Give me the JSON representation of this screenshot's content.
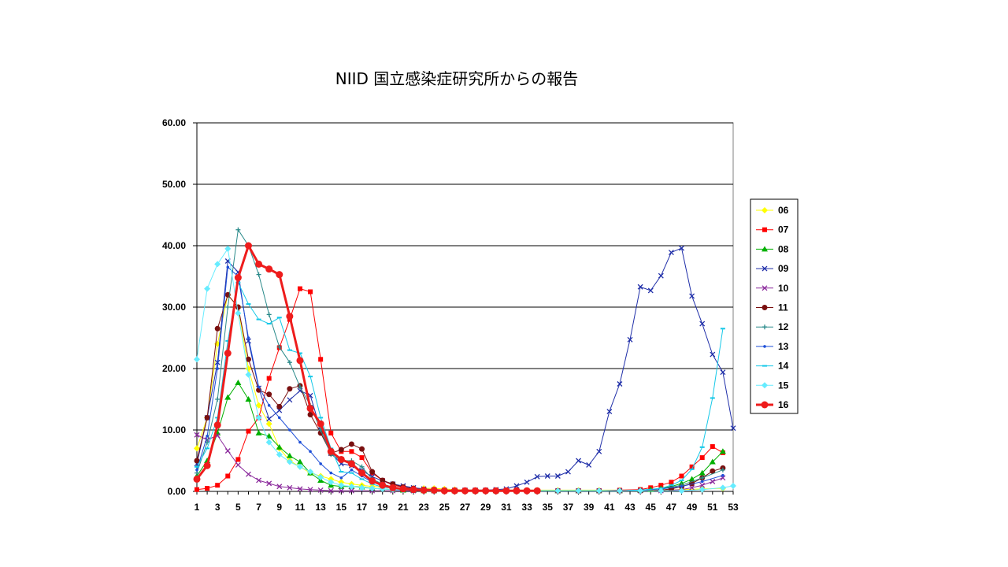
{
  "title": "NIID  国立感染症研究所からの報告",
  "chart_data": {
    "type": "line",
    "ylim": [
      0,
      60
    ],
    "yticks": [
      "0.00",
      "10.00",
      "20.00",
      "30.00",
      "40.00",
      "50.00",
      "60.00"
    ],
    "xticks": [
      "1",
      "3",
      "5",
      "7",
      "9",
      "11",
      "13",
      "15",
      "17",
      "19",
      "21",
      "23",
      "25",
      "27",
      "29",
      "31",
      "33",
      "35",
      "37",
      "39",
      "41",
      "43",
      "45",
      "47",
      "49",
      "51",
      "53"
    ],
    "xlim": [
      1,
      53
    ],
    "grid": true,
    "legend_position": "right",
    "series": [
      {
        "name": "06",
        "color": "#ffff00",
        "marker": "diamond",
        "width": 1,
        "x": [
          1,
          2,
          3,
          4,
          5,
          6,
          7,
          8,
          9,
          10,
          11,
          12,
          13,
          14,
          15,
          16,
          17,
          18,
          19,
          20,
          21,
          22,
          23,
          24,
          25,
          26,
          28,
          30,
          32,
          34,
          36,
          38,
          40,
          42,
          44,
          46,
          48,
          50,
          52
        ],
        "y": [
          7,
          12,
          24,
          32,
          30,
          20,
          14,
          11,
          7,
          5,
          4,
          3,
          2.5,
          2,
          1.5,
          1.2,
          1,
          0.8,
          0.7,
          0.6,
          0.5,
          0.5,
          0.5,
          0.5,
          0.4,
          0.3,
          0.2,
          0.2,
          0.2,
          0.2,
          0.2,
          0.2,
          0.2,
          0.2,
          0.2,
          0.2,
          0.3,
          0.4,
          0.5
        ]
      },
      {
        "name": "07",
        "color": "#ff0000",
        "marker": "square",
        "width": 1,
        "x": [
          1,
          2,
          3,
          4,
          5,
          6,
          7,
          8,
          9,
          10,
          11,
          12,
          13,
          14,
          15,
          16,
          17,
          18,
          19,
          20,
          21,
          22,
          23,
          24,
          25,
          26,
          28,
          30,
          32,
          34,
          36,
          38,
          40,
          42,
          44,
          45,
          46,
          47,
          48,
          49,
          50,
          51,
          52
        ],
        "y": [
          0.3,
          0.5,
          1,
          2.5,
          5.2,
          9.8,
          12,
          18.4,
          23.4,
          28,
          33,
          32.5,
          21.5,
          9.5,
          6.5,
          6.5,
          5.5,
          3,
          1.8,
          1,
          0.7,
          0.4,
          0.3,
          0.2,
          0.2,
          0.1,
          0.1,
          0.1,
          0.1,
          0.1,
          0.1,
          0.1,
          0.1,
          0.2,
          0.3,
          0.6,
          1,
          1.5,
          2.5,
          4,
          5.5,
          7.3,
          6.3
        ]
      },
      {
        "name": "08",
        "color": "#00b000",
        "marker": "triangle",
        "width": 1,
        "x": [
          1,
          2,
          3,
          4,
          5,
          6,
          7,
          8,
          9,
          10,
          11,
          12,
          13,
          14,
          15,
          16,
          17,
          18,
          19,
          20,
          21,
          22,
          23,
          24,
          26,
          28,
          30,
          32,
          34,
          36,
          38,
          40,
          42,
          44,
          45,
          46,
          47,
          48,
          49,
          50,
          51,
          52
        ],
        "y": [
          2.5,
          5,
          9.5,
          15.3,
          17.7,
          15,
          9.5,
          9,
          7.2,
          5.8,
          4.8,
          3,
          1.8,
          1,
          0.8,
          0.8,
          0.7,
          0.5,
          0.4,
          0.3,
          0.2,
          0.2,
          0.1,
          0.1,
          0.1,
          0.1,
          0.1,
          0.1,
          0.1,
          0.1,
          0.1,
          0.1,
          0.1,
          0.2,
          0.3,
          0.5,
          0.8,
          1.3,
          2,
          3,
          4.8,
          6.5
        ]
      },
      {
        "name": "09",
        "color": "#1f2ea8",
        "marker": "x",
        "width": 1,
        "x": [
          1,
          2,
          3,
          4,
          5,
          6,
          7,
          8,
          9,
          10,
          11,
          12,
          13,
          14,
          15,
          16,
          17,
          18,
          19,
          20,
          21,
          22,
          23,
          24,
          25,
          26,
          27,
          28,
          29,
          30,
          31,
          32,
          33,
          34,
          35,
          36,
          37,
          38,
          39,
          40,
          41,
          42,
          43,
          44,
          45,
          46,
          47,
          48,
          49,
          50,
          51,
          52,
          53
        ],
        "y": [
          4.5,
          12,
          21,
          37.5,
          35.7,
          24.5,
          16.8,
          11.8,
          13.2,
          14.9,
          16.4,
          15.6,
          10,
          6.2,
          4.5,
          4.2,
          3.4,
          2.4,
          1.7,
          1.2,
          0.9,
          0.6,
          0.4,
          0.3,
          0.2,
          0.2,
          0.2,
          0.2,
          0.2,
          0.3,
          0.4,
          0.9,
          1.5,
          2.4,
          2.5,
          2.5,
          3.2,
          5,
          4.3,
          6.5,
          13,
          17.5,
          24.7,
          33.3,
          32.7,
          35.1,
          38.9,
          39.6,
          31.8,
          27.3,
          22.3,
          19.4,
          10.3
        ]
      },
      {
        "name": "10",
        "color": "#8b2a9c",
        "marker": "x",
        "width": 1,
        "x": [
          1,
          2,
          3,
          4,
          5,
          6,
          7,
          8,
          9,
          10,
          11,
          12,
          13,
          14,
          15,
          16,
          18,
          20,
          22,
          24,
          26,
          28,
          30,
          32,
          34,
          36,
          38,
          40,
          42,
          44,
          46,
          48,
          49,
          50,
          51,
          52
        ],
        "y": [
          9.2,
          8.4,
          9.1,
          6.6,
          4.3,
          2.8,
          1.8,
          1.3,
          0.8,
          0.6,
          0.4,
          0.3,
          0.2,
          0.1,
          0.1,
          0.1,
          0.1,
          0.1,
          0.1,
          0.1,
          0.1,
          0.1,
          0.1,
          0.1,
          0.1,
          0.1,
          0.1,
          0.1,
          0.1,
          0.1,
          0.1,
          0.3,
          0.6,
          1,
          1.6,
          2.2
        ]
      },
      {
        "name": "11",
        "color": "#7a1010",
        "marker": "circle",
        "width": 1,
        "x": [
          1,
          2,
          3,
          4,
          5,
          6,
          7,
          8,
          9,
          10,
          11,
          12,
          13,
          14,
          15,
          16,
          17,
          18,
          19,
          20,
          21,
          22,
          23,
          24,
          26,
          28,
          30,
          32,
          34,
          36,
          38,
          40,
          42,
          44,
          46,
          47,
          48,
          49,
          50,
          51,
          52
        ],
        "y": [
          5,
          12,
          26.5,
          32,
          30,
          21.5,
          16.5,
          15.8,
          13.8,
          16.7,
          17.2,
          12.5,
          9.5,
          6.2,
          6.8,
          7.7,
          6.9,
          3.2,
          1.8,
          1.2,
          0.7,
          0.5,
          0.3,
          0.2,
          0.1,
          0.1,
          0.1,
          0.1,
          0.1,
          0.1,
          0.1,
          0.1,
          0.1,
          0.1,
          0.2,
          0.4,
          0.8,
          1.3,
          2.2,
          3.3,
          3.8
        ]
      },
      {
        "name": "12",
        "color": "#2a8a8a",
        "marker": "plus",
        "width": 1,
        "x": [
          1,
          2,
          3,
          4,
          5,
          6,
          7,
          8,
          9,
          10,
          11,
          12,
          13,
          14,
          15,
          16,
          17,
          18,
          19,
          20,
          21,
          22,
          23,
          24,
          26,
          28,
          30,
          32,
          34,
          36,
          38,
          40,
          42,
          44,
          46,
          48,
          50,
          52
        ],
        "y": [
          3,
          8,
          15,
          30,
          42.6,
          40,
          35.3,
          28.8,
          23.5,
          21,
          17,
          14,
          10,
          6,
          5,
          5,
          4,
          2,
          1.2,
          0.7,
          0.4,
          0.3,
          0.2,
          0.1,
          0.1,
          0.1,
          0.1,
          0.1,
          0.1,
          0.1,
          0.1,
          0.1,
          0.1,
          0.2,
          0.4,
          1,
          2.2,
          3.5
        ]
      },
      {
        "name": "13",
        "color": "#1e4fd8",
        "marker": "dot",
        "width": 1,
        "x": [
          1,
          2,
          3,
          4,
          5,
          6,
          7,
          8,
          9,
          10,
          11,
          12,
          13,
          14,
          15,
          16,
          17,
          18,
          19,
          20,
          21,
          22,
          23,
          24,
          26,
          28,
          30,
          32,
          34,
          36,
          38,
          40,
          42,
          44,
          46,
          48,
          50,
          52
        ],
        "y": [
          3.5,
          9,
          20,
          36.5,
          35,
          25,
          17,
          14,
          12,
          10,
          8,
          6.5,
          4.5,
          3,
          2.2,
          3.5,
          2.5,
          1.5,
          1,
          0.6,
          0.4,
          0.3,
          0.2,
          0.1,
          0.1,
          0.1,
          0.1,
          0.1,
          0.1,
          0.1,
          0.1,
          0.1,
          0.1,
          0.2,
          0.4,
          0.8,
          1.6,
          2.6
        ]
      },
      {
        "name": "14",
        "color": "#14c8e8",
        "marker": "dash",
        "width": 1,
        "x": [
          1,
          2,
          3,
          4,
          5,
          6,
          7,
          8,
          9,
          10,
          11,
          12,
          13,
          14,
          15,
          16,
          17,
          18,
          19,
          20,
          21,
          22,
          23,
          24,
          26,
          28,
          30,
          32,
          34,
          36,
          38,
          40,
          42,
          44,
          46,
          47,
          48,
          49,
          50,
          51,
          52
        ],
        "y": [
          4,
          7,
          12,
          24.5,
          34,
          30.5,
          28,
          27.3,
          28.3,
          23,
          22.5,
          18.7,
          12,
          7,
          3.2,
          3,
          2,
          1.2,
          0.7,
          0.5,
          0.3,
          0.2,
          0.1,
          0.1,
          0.1,
          0.1,
          0.1,
          0.1,
          0.1,
          0.1,
          0.1,
          0.1,
          0.1,
          0.2,
          0.5,
          1,
          1.8,
          3.6,
          7.2,
          15.2,
          26.5
        ]
      },
      {
        "name": "15",
        "color": "#66ecff",
        "marker": "diamond",
        "width": 1,
        "x": [
          1,
          2,
          3,
          4,
          5,
          6,
          7,
          8,
          9,
          10,
          11,
          12,
          13,
          14,
          15,
          16,
          17,
          18,
          19,
          20,
          21,
          22,
          23,
          24,
          26,
          28,
          30,
          32,
          34,
          36,
          38,
          40,
          42,
          44,
          46,
          48,
          50,
          52,
          53
        ],
        "y": [
          21.5,
          33,
          37,
          39.5,
          29,
          19,
          12,
          8,
          6,
          4.8,
          4,
          3.2,
          2.3,
          1.5,
          1,
          0.8,
          0.6,
          0.5,
          0.4,
          0.3,
          0.2,
          0.2,
          0.1,
          0.1,
          0.1,
          0.1,
          0.1,
          0.1,
          0.1,
          0.1,
          0.1,
          0.1,
          0.1,
          0.1,
          0.1,
          0.1,
          0.3,
          0.6,
          0.9
        ]
      },
      {
        "name": "16",
        "color": "#ee1c1c",
        "marker": "circle",
        "width": 3,
        "x": [
          1,
          2,
          3,
          4,
          5,
          6,
          7,
          8,
          9,
          10,
          11,
          12,
          13,
          14,
          15,
          16,
          17,
          18,
          19,
          20,
          21,
          22,
          23,
          24,
          25,
          26,
          27,
          28,
          29,
          30,
          31,
          32,
          33,
          34
        ],
        "y": [
          2,
          4.2,
          10.8,
          22.5,
          34.8,
          40,
          37,
          36.2,
          35.3,
          28.5,
          21.3,
          13.5,
          11,
          6.5,
          5.2,
          4.5,
          3,
          1.7,
          1,
          0.6,
          0.4,
          0.3,
          0.2,
          0.2,
          0.1,
          0.1,
          0.1,
          0.1,
          0.1,
          0.1,
          0.1,
          0.1,
          0.1,
          0.1
        ]
      }
    ]
  }
}
